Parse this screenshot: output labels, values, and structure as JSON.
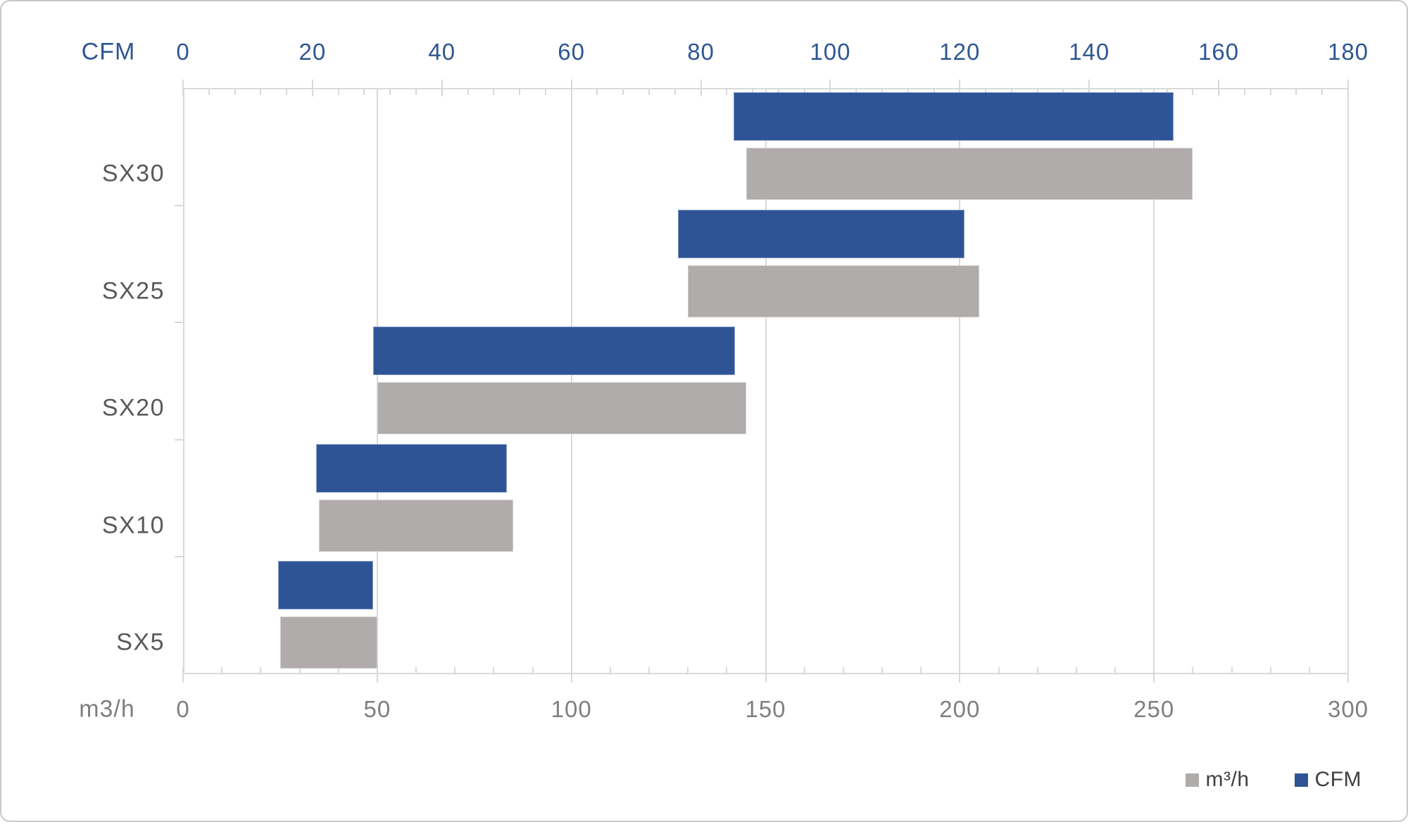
{
  "chart_data": {
    "type": "bar",
    "subtype": "horizontal-range-bars",
    "title": "",
    "categories": [
      "SX30",
      "SX25",
      "SX20",
      "SX10",
      "SX5"
    ],
    "series": [
      {
        "name": "CFM",
        "axis": "top",
        "color": "#2f5496",
        "ranges": [
          [
            85,
            153
          ],
          [
            76.5,
            120.7
          ],
          [
            29.4,
            85.3
          ],
          [
            20.6,
            50
          ],
          [
            14.7,
            29.4
          ]
        ]
      },
      {
        "name": "m³/h",
        "axis": "bottom",
        "color": "#afacab",
        "ranges": [
          [
            145,
            260
          ],
          [
            130,
            205
          ],
          [
            50,
            145
          ],
          [
            35,
            85
          ],
          [
            25,
            50
          ]
        ]
      }
    ],
    "top_axis": {
      "label": "CFM",
      "min": 0,
      "max": 180,
      "major_step": 20,
      "minor_step": 4,
      "tick_labels": [
        "0",
        "20",
        "40",
        "60",
        "80",
        "100",
        "120",
        "140",
        "160",
        "180"
      ]
    },
    "bottom_axis": {
      "label": "m3/h",
      "min": 0,
      "max": 300,
      "major_step": 50,
      "minor_step": 10,
      "tick_labels": [
        "0",
        "50",
        "100",
        "150",
        "200",
        "250",
        "300"
      ]
    },
    "grid": "vertical-major-bottom-axis",
    "legend": {
      "position": "bottom-right",
      "items": [
        {
          "label": "m³/h",
          "color": "#afacab"
        },
        {
          "label": "CFM",
          "color": "#2f5496"
        }
      ]
    },
    "colors": {
      "top_axis_text": "#2e5693",
      "bottom_axis_text": "#7f7f7f",
      "category_text": "#595959",
      "legend_text": "#3f3f3f",
      "grid": "#d9d9d9"
    }
  }
}
